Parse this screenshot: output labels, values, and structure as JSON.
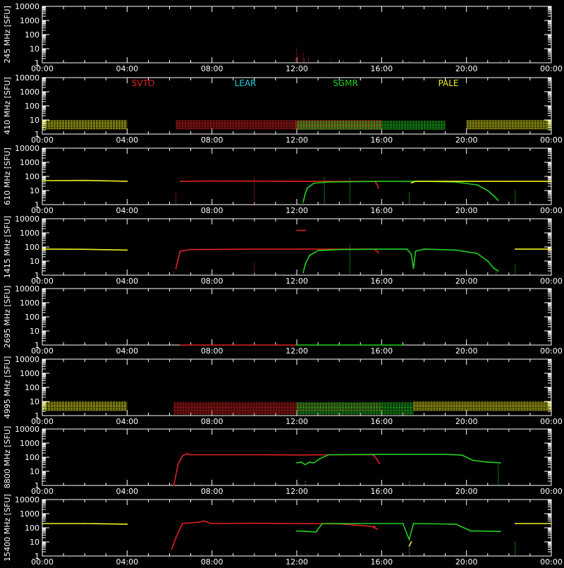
{
  "colors": {
    "background": "#000000",
    "axis": "#ffffff",
    "SVTO": "#e02020",
    "LEAR": "#20d0e0",
    "SGMR": "#20d020",
    "PALE": "#f0f020"
  },
  "legend": [
    {
      "name": "SVTO",
      "color_key": "SVTO"
    },
    {
      "name": "LEAR",
      "color_key": "LEAR"
    },
    {
      "name": "SGMR",
      "color_key": "SGMR"
    },
    {
      "name": "PALE",
      "color_key": "PALE"
    }
  ],
  "chart_data": {
    "type": "line",
    "x_unit": "UT hours",
    "x_ticks": [
      "00:00",
      "04:00",
      "08:00",
      "12:00",
      "16:00",
      "20:00",
      "00:00"
    ],
    "x_range": [
      0,
      24
    ],
    "y_scale": "log",
    "y_range": [
      1,
      10000
    ],
    "y_ticks": [
      "1",
      "10",
      "100",
      "1000",
      "10000"
    ],
    "grid": false,
    "panels": [
      {
        "ylabel": "245 MHz [SFU]",
        "series": [
          {
            "station": "SVTO",
            "style": "spikes",
            "points": [
              [
                11.95,
                2
              ],
              [
                12.0,
                12
              ],
              [
                12.05,
                3
              ],
              [
                12.3,
                5
              ],
              [
                12.35,
                2
              ],
              [
                12.55,
                3
              ],
              [
                13.6,
                1.6
              ]
            ]
          },
          {
            "station": "SGMR",
            "style": "spikes",
            "points": [
              [
                14.2,
                1.5
              ],
              [
                17.3,
                1.4
              ],
              [
                21.6,
                1.5
              ]
            ]
          }
        ]
      },
      {
        "ylabel": "410 MHz [SFU]",
        "series": [
          {
            "station": "PALE",
            "style": "band",
            "points": [
              [
                0,
                2
              ],
              [
                4.0,
                9
              ],
              [
                20.0,
                2
              ],
              [
                24,
                9
              ]
            ]
          },
          {
            "station": "SVTO",
            "style": "band",
            "points": [
              [
                6.3,
                2
              ],
              [
                12.0,
                9
              ],
              [
                11.9,
                2
              ],
              [
                16.0,
                9
              ]
            ]
          },
          {
            "station": "SGMR",
            "style": "band",
            "points": [
              [
                12.0,
                2
              ],
              [
                19.0,
                8
              ]
            ]
          }
        ]
      },
      {
        "ylabel": "610 MHz [SFU]",
        "series": [
          {
            "station": "PALE",
            "style": "line",
            "points": [
              [
                0,
                50
              ],
              [
                2,
                52
              ],
              [
                4.0,
                45
              ]
            ]
          },
          {
            "station": "SVTO",
            "style": "line",
            "points": [
              [
                6.5,
                45
              ],
              [
                8,
                47
              ],
              [
                10,
                46
              ],
              [
                12,
                45
              ],
              [
                14,
                45
              ],
              [
                15.8,
                44
              ]
            ]
          },
          {
            "station": "SVTO",
            "style": "line",
            "points": [
              [
                15.7,
                40
              ],
              [
                15.8,
                25
              ],
              [
                15.85,
                15
              ]
            ]
          },
          {
            "station": "SGMR",
            "style": "line",
            "points": [
              [
                12.3,
                1.5
              ],
              [
                12.4,
                6
              ],
              [
                12.5,
                15
              ],
              [
                12.8,
                33
              ],
              [
                13.5,
                40
              ],
              [
                16,
                45
              ],
              [
                18,
                45
              ],
              [
                19.5,
                40
              ],
              [
                20.5,
                25
              ],
              [
                21.0,
                10
              ],
              [
                21.3,
                4
              ],
              [
                21.5,
                2
              ]
            ]
          },
          {
            "station": "PALE",
            "style": "line",
            "points": [
              [
                17.4,
                35
              ],
              [
                17.6,
                45
              ],
              [
                19,
                45
              ],
              [
                22,
                45
              ],
              [
                24,
                45
              ]
            ]
          },
          {
            "station": "SVTO",
            "style": "spikes",
            "points": [
              [
                6.3,
                8
              ],
              [
                10.0,
                90
              ],
              [
                12.1,
                1.2
              ]
            ]
          },
          {
            "station": "SGMR",
            "style": "spikes",
            "points": [
              [
                12.3,
                1.2
              ],
              [
                13.3,
                90
              ],
              [
                14.5,
                80
              ],
              [
                17.3,
                8
              ],
              [
                22.3,
                10
              ]
            ]
          }
        ]
      },
      {
        "ylabel": "1415 MHz [SFU]",
        "series": [
          {
            "station": "PALE",
            "style": "line",
            "points": [
              [
                0,
                70
              ],
              [
                2,
                68
              ],
              [
                4.0,
                60
              ]
            ]
          },
          {
            "station": "SVTO",
            "style": "line",
            "points": [
              [
                6.3,
                3
              ],
              [
                6.5,
                50
              ],
              [
                7,
                65
              ],
              [
                10,
                70
              ],
              [
                12,
                70
              ],
              [
                15.8,
                70
              ]
            ]
          },
          {
            "station": "SVTO",
            "style": "line",
            "points": [
              [
                15.7,
                60
              ],
              [
                15.85,
                40
              ]
            ]
          },
          {
            "station": "SVTO",
            "style": "line",
            "points": [
              [
                12.0,
                1500
              ],
              [
                12.4,
                1500
              ]
            ]
          },
          {
            "station": "SGMR",
            "style": "line",
            "points": [
              [
                12.3,
                1.5
              ],
              [
                12.4,
                6
              ],
              [
                12.6,
                25
              ],
              [
                13,
                55
              ],
              [
                14,
                65
              ],
              [
                16,
                70
              ],
              [
                17.2,
                70
              ],
              [
                17.4,
                30
              ],
              [
                17.5,
                3
              ],
              [
                17.6,
                50
              ],
              [
                18,
                70
              ],
              [
                19.5,
                60
              ],
              [
                20.5,
                35
              ],
              [
                21.0,
                10
              ],
              [
                21.3,
                3
              ],
              [
                21.5,
                2
              ]
            ]
          },
          {
            "station": "PALE",
            "style": "line",
            "points": [
              [
                22.3,
                70
              ],
              [
                24,
                70
              ]
            ]
          },
          {
            "station": "SVTO",
            "style": "spikes",
            "points": [
              [
                6.2,
                2
              ],
              [
                10.0,
                8
              ],
              [
                12.1,
                1.2
              ]
            ]
          },
          {
            "station": "SGMR",
            "style": "spikes",
            "points": [
              [
                14.5,
                150
              ],
              [
                21.4,
                2
              ],
              [
                22.3,
                5
              ]
            ]
          }
        ]
      },
      {
        "ylabel": "2695 MHz [SFU]",
        "series": [
          {
            "station": "SVTO",
            "style": "line",
            "points": [
              [
                6.5,
                1
              ],
              [
                12.0,
                1
              ]
            ]
          },
          {
            "station": "SGMR",
            "style": "line",
            "points": [
              [
                12.0,
                1
              ],
              [
                17.0,
                1
              ]
            ]
          }
        ]
      },
      {
        "ylabel": "4995 MHz [SFU]",
        "series": [
          {
            "station": "PALE",
            "style": "band",
            "points": [
              [
                0,
                2
              ],
              [
                4.0,
                9
              ],
              [
                17.5,
                2
              ],
              [
                24,
                9
              ]
            ]
          },
          {
            "station": "SVTO",
            "style": "band",
            "points": [
              [
                6.2,
                1.2
              ],
              [
                12.0,
                8
              ],
              [
                12.0,
                2
              ],
              [
                16.0,
                8
              ]
            ]
          },
          {
            "station": "SGMR",
            "style": "band",
            "points": [
              [
                12.0,
                1.2
              ],
              [
                17.5,
                8
              ]
            ]
          }
        ]
      },
      {
        "ylabel": "8800 MHz [SFU]",
        "series": [
          {
            "station": "SVTO",
            "style": "line",
            "points": [
              [
                6.2,
                1
              ],
              [
                6.4,
                30
              ],
              [
                6.6,
                120
              ],
              [
                6.8,
                180
              ],
              [
                7.0,
                150
              ],
              [
                10,
                150
              ],
              [
                12,
                145
              ],
              [
                14,
                150
              ],
              [
                15.7,
                150
              ]
            ]
          },
          {
            "station": "SVTO",
            "style": "line",
            "points": [
              [
                15.6,
                140
              ],
              [
                15.75,
                80
              ],
              [
                15.9,
                35
              ]
            ]
          },
          {
            "station": "SGMR",
            "style": "line",
            "points": [
              [
                12.0,
                40
              ],
              [
                12.2,
                45
              ],
              [
                12.4,
                30
              ],
              [
                12.6,
                45
              ],
              [
                12.8,
                40
              ],
              [
                13.1,
                80
              ],
              [
                13.5,
                150
              ],
              [
                16,
                160
              ],
              [
                19,
                160
              ],
              [
                19.8,
                140
              ],
              [
                20.3,
                60
              ],
              [
                21,
                45
              ],
              [
                21.6,
                40
              ]
            ]
          },
          {
            "station": "SVTO",
            "style": "spikes",
            "points": [
              [
                6.1,
                1.5
              ],
              [
                7.5,
                1.5
              ],
              [
                10.0,
                1.5
              ],
              [
                12.1,
                1.5
              ]
            ]
          },
          {
            "station": "SGMR",
            "style": "spikes",
            "points": [
              [
                12.4,
                2
              ],
              [
                17.3,
                2
              ],
              [
                21.5,
                30
              ]
            ]
          }
        ]
      },
      {
        "ylabel": "15400 MHz [SFU]",
        "series": [
          {
            "station": "PALE",
            "style": "line",
            "points": [
              [
                0,
                200
              ],
              [
                2,
                200
              ],
              [
                4.0,
                180
              ]
            ]
          },
          {
            "station": "SVTO",
            "style": "line",
            "points": [
              [
                6.1,
                3
              ],
              [
                6.3,
                20
              ],
              [
                6.6,
                200
              ],
              [
                7.4,
                250
              ],
              [
                7.6,
                300
              ],
              [
                8,
                200
              ],
              [
                10,
                210
              ],
              [
                12,
                200
              ],
              [
                14,
                190
              ],
              [
                15.7,
                120
              ]
            ]
          },
          {
            "station": "SVTO",
            "style": "line",
            "points": [
              [
                15.6,
                110
              ],
              [
                15.8,
                80
              ]
            ]
          },
          {
            "station": "SGMR",
            "style": "line",
            "points": [
              [
                12.0,
                60
              ],
              [
                12.5,
                55
              ],
              [
                12.9,
                50
              ],
              [
                13.2,
                200
              ],
              [
                14,
                200
              ],
              [
                17,
                200
              ],
              [
                17.3,
                15
              ],
              [
                17.5,
                200
              ],
              [
                19.5,
                180
              ],
              [
                20.2,
                60
              ],
              [
                21.6,
                55
              ]
            ]
          },
          {
            "station": "PALE",
            "style": "line",
            "points": [
              [
                17.3,
                5
              ],
              [
                17.4,
                10
              ]
            ]
          },
          {
            "station": "PALE",
            "style": "line",
            "points": [
              [
                22.3,
                200
              ],
              [
                24,
                200
              ]
            ]
          },
          {
            "station": "SVTO",
            "style": "spikes",
            "points": [
              [
                7.5,
                1.5
              ],
              [
                10.0,
                1.5
              ],
              [
                12.2,
                1.5
              ]
            ]
          },
          {
            "station": "SGMR",
            "style": "spikes",
            "points": [
              [
                12.5,
                1.5
              ],
              [
                17.3,
                5
              ],
              [
                22.3,
                10
              ]
            ]
          }
        ]
      }
    ]
  }
}
